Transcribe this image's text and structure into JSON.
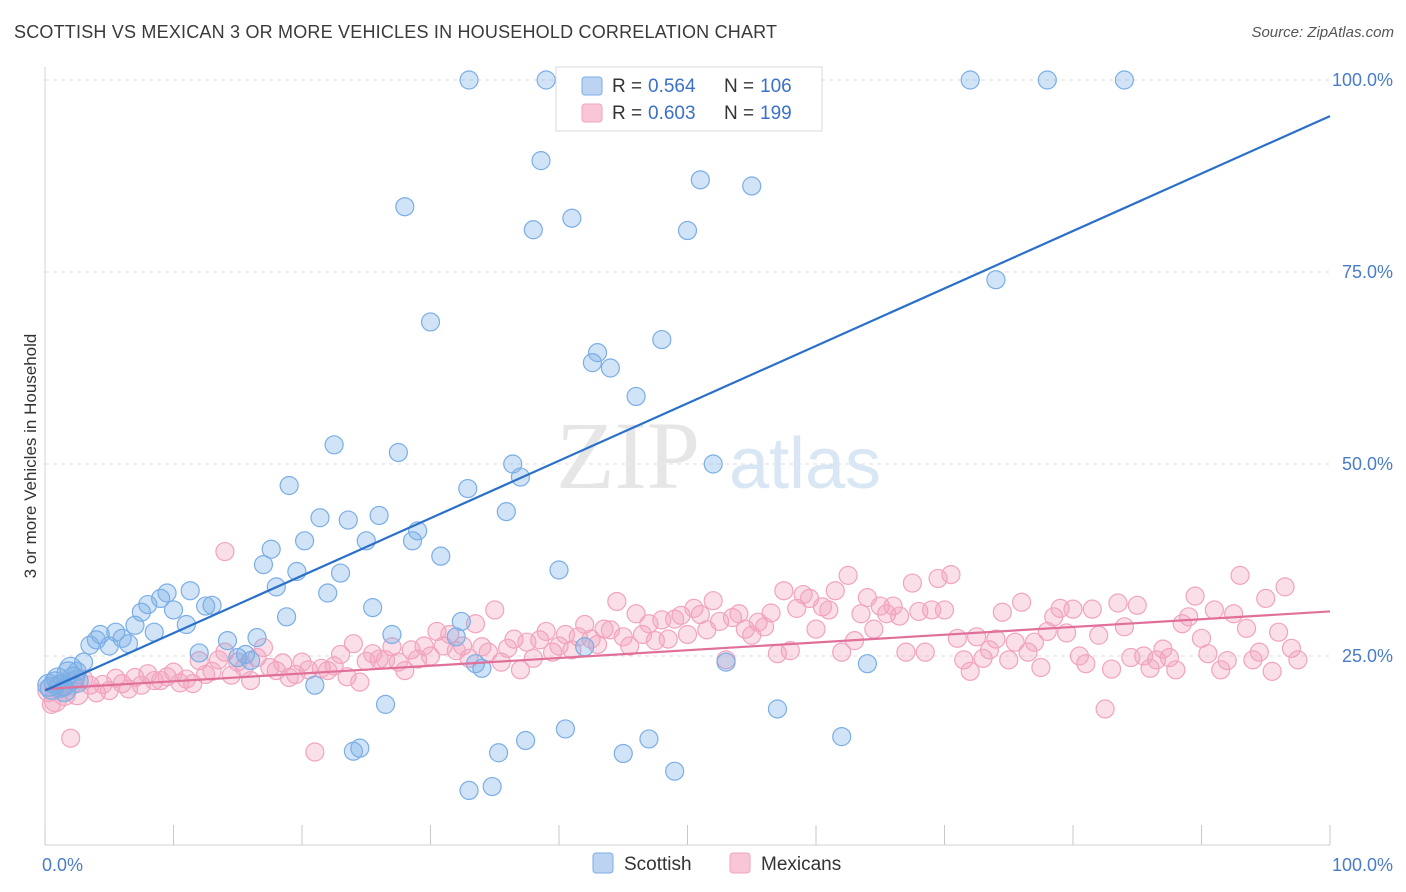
{
  "title": "SCOTTISH VS MEXICAN 3 OR MORE VEHICLES IN HOUSEHOLD CORRELATION CHART",
  "source": "Source: ZipAtlas.com",
  "watermark": {
    "zip": "ZIP",
    "atlas": "atlas"
  },
  "colors": {
    "blue": "#7aaee6",
    "blue_line": "#2a70c9",
    "pink": "#f2a3bd",
    "pink_line": "#e0709a",
    "tick_label": "#4a7cc9"
  },
  "legend_top": [
    {
      "series": "Scottish",
      "r_label": "R = ",
      "r_value": "0.564",
      "n_label": "N = ",
      "n_value": "106"
    },
    {
      "series": "Mexicans",
      "r_label": "R = ",
      "r_value": "0.603",
      "n_label": "N = ",
      "n_value": "199"
    }
  ],
  "chart_data": {
    "type": "scatter",
    "xlabel": "",
    "ylabel": "3 or more Vehicles in Household",
    "x_tick_labels": [
      "0.0%",
      "100.0%"
    ],
    "y_tick_labels": [
      "25.0%",
      "50.0%",
      "75.0%",
      "100.0%"
    ],
    "xlim": [
      0,
      100
    ],
    "ylim": [
      0,
      103
    ],
    "grid": true,
    "legend": "bottom-center",
    "series": [
      {
        "name": "Scottish",
        "trend": {
          "x": [
            0,
            100
          ],
          "y": [
            20.5,
            95.3
          ]
        },
        "points": [
          [
            0.3,
            21.2
          ],
          [
            0.5,
            20.8
          ],
          [
            0.8,
            21.5
          ],
          [
            1,
            22
          ],
          [
            1.2,
            21.1
          ],
          [
            1.5,
            20.5
          ],
          [
            1.8,
            22.8
          ],
          [
            2,
            23.4
          ],
          [
            2.2,
            22.1
          ],
          [
            2.5,
            21.7
          ],
          [
            3,
            24.2
          ],
          [
            3.5,
            26.4
          ],
          [
            4,
            27.1
          ],
          [
            4.3,
            27.8
          ],
          [
            5,
            26.3
          ],
          [
            5.5,
            28.1
          ],
          [
            6,
            27.3
          ],
          [
            6.5,
            26.6
          ],
          [
            7,
            29
          ],
          [
            7.5,
            30.7
          ],
          [
            8,
            31.7
          ],
          [
            8.5,
            28.1
          ],
          [
            9,
            32.5
          ],
          [
            9.5,
            33.2
          ],
          [
            10,
            31
          ],
          [
            11,
            29.1
          ],
          [
            11.3,
            33.5
          ],
          [
            12,
            25.4
          ],
          [
            12.5,
            31.5
          ],
          [
            13,
            31.6
          ],
          [
            14.2,
            27
          ],
          [
            15,
            24.8
          ],
          [
            15.6,
            25.2
          ],
          [
            16,
            24.4
          ],
          [
            16.5,
            27.4
          ],
          [
            17,
            36.9
          ],
          [
            17.6,
            38.9
          ],
          [
            18,
            34
          ],
          [
            18.8,
            30.1
          ],
          [
            19,
            47.2
          ],
          [
            19.6,
            36
          ],
          [
            20.2,
            40
          ],
          [
            21,
            21.2
          ],
          [
            21.4,
            43
          ],
          [
            22,
            33.2
          ],
          [
            22.5,
            52.5
          ],
          [
            23,
            35.8
          ],
          [
            23.6,
            42.7
          ],
          [
            24,
            12.6
          ],
          [
            24.5,
            13
          ],
          [
            25,
            40
          ],
          [
            25.5,
            31.3
          ],
          [
            26,
            43.3
          ],
          [
            26.5,
            18.7
          ],
          [
            27,
            27.8
          ],
          [
            27.5,
            51.5
          ],
          [
            28,
            83.5
          ],
          [
            28.6,
            40
          ],
          [
            29,
            41.3
          ],
          [
            30,
            68.5
          ],
          [
            30.8,
            38
          ],
          [
            32,
            27.5
          ],
          [
            32.4,
            29.5
          ],
          [
            32.9,
            46.8
          ],
          [
            33,
            7.5
          ],
          [
            33.5,
            24
          ],
          [
            34,
            23.4
          ],
          [
            34.8,
            8
          ],
          [
            35.3,
            12.4
          ],
          [
            35.9,
            43.8
          ],
          [
            36.4,
            50
          ],
          [
            37,
            48.3
          ],
          [
            37.4,
            14
          ],
          [
            38,
            80.5
          ],
          [
            38.6,
            89.5
          ],
          [
            40,
            36.2
          ],
          [
            40.5,
            15.5
          ],
          [
            41,
            82
          ],
          [
            42,
            26.2
          ],
          [
            42.6,
            63.2
          ],
          [
            43,
            64.5
          ],
          [
            44,
            62.5
          ],
          [
            45,
            12.3
          ],
          [
            46,
            58.8
          ],
          [
            47,
            14.2
          ],
          [
            48,
            66.2
          ],
          [
            49,
            10
          ],
          [
            50,
            80.4
          ],
          [
            51,
            87
          ],
          [
            52,
            50
          ],
          [
            53,
            24.2
          ],
          [
            55,
            86.2
          ],
          [
            57,
            18.1
          ],
          [
            62,
            14.5
          ],
          [
            64,
            24
          ],
          [
            74,
            74
          ],
          [
            33,
            100
          ],
          [
            39,
            100
          ],
          [
            43,
            100
          ],
          [
            57,
            100
          ],
          [
            58,
            100
          ],
          [
            72,
            100
          ],
          [
            78,
            100
          ],
          [
            84,
            100
          ],
          [
            1.5,
            21
          ],
          [
            2.5,
            23
          ]
        ]
      },
      {
        "name": "Mexicans",
        "trend": {
          "x": [
            0,
            100
          ],
          "y": [
            20.7,
            30.8
          ]
        },
        "points": [
          [
            0.3,
            20.5
          ],
          [
            0.8,
            19.2
          ],
          [
            1.2,
            21
          ],
          [
            1.5,
            20
          ],
          [
            2,
            21.4
          ],
          [
            2.5,
            20.1
          ],
          [
            3,
            22
          ],
          [
            3.5,
            21.2
          ],
          [
            4,
            20.2
          ],
          [
            4.5,
            21.3
          ],
          [
            5,
            20.5
          ],
          [
            5.5,
            22.1
          ],
          [
            6,
            21.4
          ],
          [
            6.5,
            20.7
          ],
          [
            7,
            22.2
          ],
          [
            7.5,
            21.2
          ],
          [
            8,
            22.7
          ],
          [
            8.5,
            21.8
          ],
          [
            9,
            21.8
          ],
          [
            9.5,
            22.3
          ],
          [
            10,
            22.9
          ],
          [
            10.5,
            21.5
          ],
          [
            11,
            22
          ],
          [
            11.5,
            21.4
          ],
          [
            12,
            24.4
          ],
          [
            12.5,
            22.6
          ],
          [
            13,
            23
          ],
          [
            13.5,
            24.5
          ],
          [
            14,
            25.5
          ],
          [
            14.5,
            22.5
          ],
          [
            15,
            24.2
          ],
          [
            15.5,
            23.5
          ],
          [
            16,
            21.8
          ],
          [
            16.5,
            24.8
          ],
          [
            17,
            26.1
          ],
          [
            17.5,
            23.5
          ],
          [
            18,
            23.1
          ],
          [
            18.5,
            24.1
          ],
          [
            19,
            22.2
          ],
          [
            19.5,
            22.6
          ],
          [
            20,
            24.2
          ],
          [
            20.5,
            23.2
          ],
          [
            21,
            12.5
          ],
          [
            21.5,
            23.4
          ],
          [
            22,
            23.1
          ],
          [
            22.5,
            23.7
          ],
          [
            23,
            25.2
          ],
          [
            23.5,
            22.3
          ],
          [
            24,
            26.6
          ],
          [
            24.5,
            21.6
          ],
          [
            25,
            24.3
          ],
          [
            25.5,
            25.3
          ],
          [
            26,
            24.6
          ],
          [
            26.5,
            24.5
          ],
          [
            27,
            26.2
          ],
          [
            27.5,
            24.2
          ],
          [
            28,
            23.1
          ],
          [
            28.5,
            25.8
          ],
          [
            29,
            24.6
          ],
          [
            29.5,
            26.3
          ],
          [
            30,
            25
          ],
          [
            30.5,
            28.2
          ],
          [
            31,
            26.3
          ],
          [
            31.5,
            27.8
          ],
          [
            32,
            25.7
          ],
          [
            32.5,
            26.3
          ],
          [
            33,
            24.7
          ],
          [
            33.5,
            29.2
          ],
          [
            34,
            26.2
          ],
          [
            34.5,
            25.5
          ],
          [
            35,
            31
          ],
          [
            35.5,
            24.2
          ],
          [
            36,
            26
          ],
          [
            36.5,
            27.2
          ],
          [
            37,
            23.2
          ],
          [
            37.5,
            26.8
          ],
          [
            38,
            24.7
          ],
          [
            38.5,
            27.1
          ],
          [
            39,
            28.2
          ],
          [
            39.5,
            25.5
          ],
          [
            40,
            26.3
          ],
          [
            40.5,
            27.8
          ],
          [
            41,
            25.8
          ],
          [
            41.5,
            27.5
          ],
          [
            42,
            29.1
          ],
          [
            42.5,
            27.2
          ],
          [
            43,
            26.5
          ],
          [
            43.5,
            28.5
          ],
          [
            44,
            28.4
          ],
          [
            44.5,
            32.1
          ],
          [
            45,
            27.5
          ],
          [
            45.5,
            26.3
          ],
          [
            46,
            30.5
          ],
          [
            46.5,
            27.8
          ],
          [
            47,
            29.2
          ],
          [
            47.5,
            27
          ],
          [
            48,
            29.7
          ],
          [
            48.5,
            27.2
          ],
          [
            49,
            29.8
          ],
          [
            49.5,
            30.3
          ],
          [
            50,
            27.8
          ],
          [
            50.5,
            31.2
          ],
          [
            51,
            30.4
          ],
          [
            51.5,
            28.4
          ],
          [
            52,
            32.2
          ],
          [
            52.5,
            29.5
          ],
          [
            53,
            24.5
          ],
          [
            53.5,
            30
          ],
          [
            54,
            30.5
          ],
          [
            54.5,
            28.5
          ],
          [
            55,
            27.7
          ],
          [
            55.5,
            29.4
          ],
          [
            56,
            28.8
          ],
          [
            56.5,
            30.6
          ],
          [
            57,
            25.3
          ],
          [
            57.5,
            33.5
          ],
          [
            58,
            25.7
          ],
          [
            58.5,
            31.2
          ],
          [
            59,
            33
          ],
          [
            59.5,
            32.5
          ],
          [
            60,
            28.5
          ],
          [
            60.5,
            31.4
          ],
          [
            61,
            31
          ],
          [
            61.5,
            33.5
          ],
          [
            62,
            25.5
          ],
          [
            62.5,
            35.5
          ],
          [
            63,
            27
          ],
          [
            63.5,
            30.5
          ],
          [
            64,
            32.6
          ],
          [
            64.5,
            28.5
          ],
          [
            65,
            31.5
          ],
          [
            65.5,
            30.5
          ],
          [
            66,
            31.5
          ],
          [
            66.5,
            30.2
          ],
          [
            67,
            25.5
          ],
          [
            67.5,
            34.5
          ],
          [
            68,
            30.8
          ],
          [
            68.5,
            25.5
          ],
          [
            69,
            31
          ],
          [
            69.5,
            35.1
          ],
          [
            70,
            31
          ],
          [
            70.5,
            35.6
          ],
          [
            71,
            27.3
          ],
          [
            71.5,
            24.5
          ],
          [
            72,
            23
          ],
          [
            72.5,
            27.5
          ],
          [
            73,
            24.7
          ],
          [
            73.5,
            25.8
          ],
          [
            74,
            27.2
          ],
          [
            74.5,
            30.7
          ],
          [
            75,
            24.5
          ],
          [
            75.5,
            26.8
          ],
          [
            76,
            32
          ],
          [
            76.5,
            25.5
          ],
          [
            77,
            26.8
          ],
          [
            77.5,
            23.5
          ],
          [
            78,
            28.2
          ],
          [
            78.5,
            30.1
          ],
          [
            79,
            31.2
          ],
          [
            79.5,
            28
          ],
          [
            80,
            31.1
          ],
          [
            80.5,
            25
          ],
          [
            81,
            24
          ],
          [
            81.5,
            31.1
          ],
          [
            82,
            27.7
          ],
          [
            82.5,
            18.1
          ],
          [
            83,
            23.3
          ],
          [
            83.5,
            31.9
          ],
          [
            84,
            28.8
          ],
          [
            84.5,
            24.8
          ],
          [
            85,
            31.6
          ],
          [
            85.5,
            25
          ],
          [
            86,
            23.4
          ],
          [
            86.5,
            24.5
          ],
          [
            87,
            25.9
          ],
          [
            87.5,
            24.8
          ],
          [
            88,
            23.2
          ],
          [
            88.5,
            29.2
          ],
          [
            89,
            30.1
          ],
          [
            89.5,
            32.8
          ],
          [
            90,
            27.3
          ],
          [
            90.5,
            25.3
          ],
          [
            91,
            31
          ],
          [
            91.5,
            23.2
          ],
          [
            92,
            24.4
          ],
          [
            92.5,
            30.5
          ],
          [
            93,
            35.5
          ],
          [
            93.5,
            28.6
          ],
          [
            94,
            24.5
          ],
          [
            94.5,
            25.5
          ],
          [
            95,
            32.5
          ],
          [
            95.5,
            23
          ],
          [
            96,
            28.1
          ],
          [
            96.5,
            34
          ],
          [
            97,
            26
          ],
          [
            97.5,
            24.5
          ],
          [
            0.5,
            18.7
          ],
          [
            2,
            14.3
          ],
          [
            14,
            38.6
          ]
        ]
      }
    ]
  }
}
